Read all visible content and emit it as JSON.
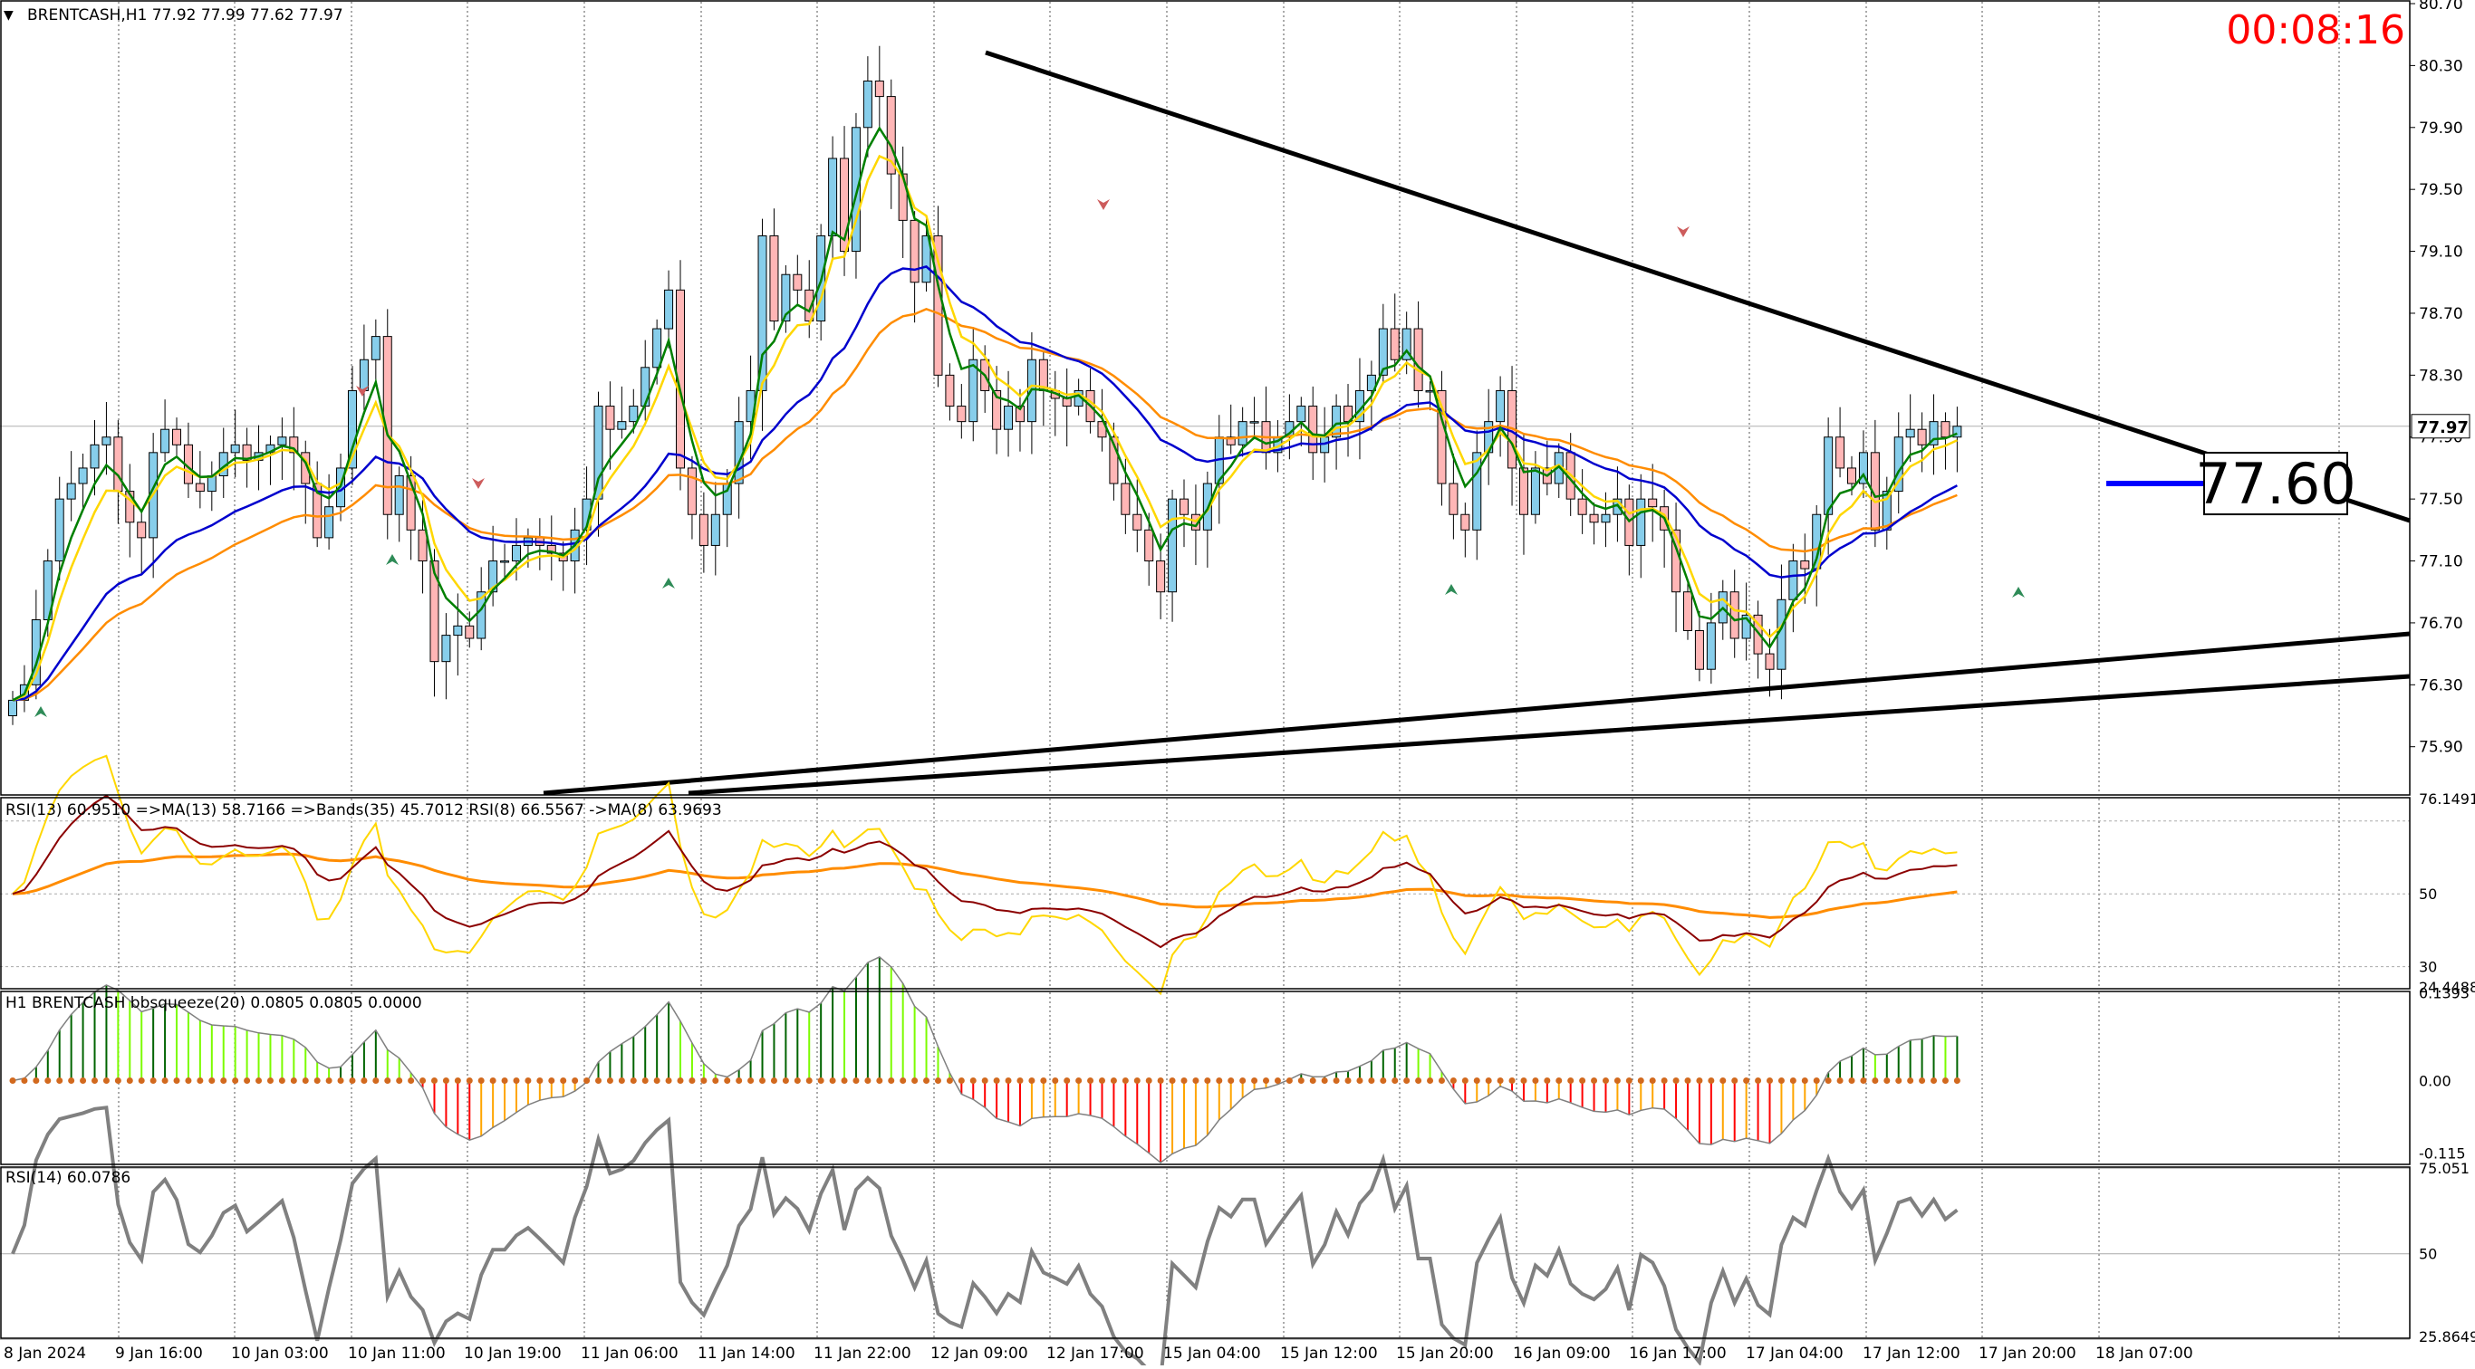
{
  "header": {
    "symbol_line": "BRENTCASH,H1  77.92 77.99 77.62 77.97",
    "timer": "00:08:16",
    "menu_arrow": "triangle-down-icon"
  },
  "colors": {
    "bull_candle": "#87ceeb",
    "bear_candle": "#ffb6b6",
    "ma_fast": "#008000",
    "ma_mid": "#ffd700",
    "ma_slow": "#0000cd",
    "ma_long": "#ff8c00",
    "rsi_fast": "#ffd700",
    "rsi_slow": "#8b0000",
    "rsi_bands": "#ff8c00",
    "squeeze_up_strong": "#006400",
    "squeeze_up_weak": "#7cfc00",
    "squeeze_down_strong": "#ff0000",
    "squeeze_down_weak": "#ffa500",
    "squeeze_dot": "#d2691e",
    "rsi14": "#808080",
    "timer": "#ff0000",
    "trendline": "#000000"
  },
  "chart_data": [
    {
      "type": "candlestick",
      "title": "BRENTCASH,H1",
      "ohlc_header": {
        "open": 77.92,
        "high": 77.99,
        "low": 77.62,
        "close": 77.97
      },
      "ylim": [
        75.6,
        80.7
      ],
      "price_ticks": [
        "80.70",
        "80.30",
        "79.90",
        "79.50",
        "79.10",
        "78.70",
        "78.30",
        "77.90",
        "77.50",
        "77.10",
        "76.70",
        "76.30",
        "75.90"
      ],
      "current_price_label": "77.97",
      "level_label": "77.60",
      "x_labels": [
        "8 Jan 2024",
        "9 Jan 16:00",
        "10 Jan 03:00",
        "10 Jan 11:00",
        "10 Jan 19:00",
        "11 Jan 06:00",
        "11 Jan 14:00",
        "11 Jan 22:00",
        "12 Jan 09:00",
        "12 Jan 17:00",
        "15 Jan 04:00",
        "15 Jan 12:00",
        "15 Jan 20:00",
        "16 Jan 09:00",
        "16 Jan 17:00",
        "17 Jan 04:00",
        "17 Jan 12:00",
        "17 Jan 20:00",
        "18 Jan 07:00"
      ],
      "close": [
        76.2,
        76.3,
        76.72,
        77.1,
        77.5,
        77.6,
        77.7,
        77.85,
        77.9,
        77.55,
        77.35,
        77.25,
        77.8,
        77.95,
        77.85,
        77.6,
        77.55,
        77.65,
        77.8,
        77.85,
        77.75,
        77.8,
        77.85,
        77.9,
        77.8,
        77.6,
        77.25,
        77.45,
        77.7,
        78.2,
        78.4,
        78.55,
        77.4,
        77.65,
        77.3,
        77.1,
        76.45,
        76.62,
        76.68,
        76.6,
        76.9,
        77.1,
        77.1,
        77.2,
        77.25,
        77.2,
        77.15,
        77.1,
        77.3,
        77.5,
        78.1,
        77.95,
        78.0,
        78.1,
        78.35,
        78.6,
        78.85,
        77.7,
        77.4,
        77.2,
        77.4,
        77.6,
        78.0,
        78.2,
        79.2,
        78.65,
        78.95,
        78.85,
        78.65,
        79.2,
        79.7,
        79.1,
        79.9,
        80.2,
        80.1,
        79.6,
        79.3,
        78.9,
        79.2,
        78.3,
        78.1,
        78.0,
        78.4,
        78.2,
        77.95,
        78.1,
        78.0,
        78.4,
        78.2,
        78.15,
        78.1,
        78.2,
        78.0,
        77.9,
        77.6,
        77.4,
        77.3,
        77.1,
        76.9,
        77.5,
        77.4,
        77.3,
        77.6,
        77.9,
        77.85,
        78.0,
        78.0,
        77.8,
        77.9,
        78.0,
        78.1,
        77.8,
        77.9,
        78.1,
        78.0,
        78.2,
        78.3,
        78.6,
        78.4,
        78.6,
        78.2,
        78.2,
        77.6,
        77.4,
        77.3,
        77.8,
        78.0,
        78.2,
        77.7,
        77.4,
        77.7,
        77.6,
        77.8,
        77.5,
        77.4,
        77.35,
        77.4,
        77.5,
        77.2,
        77.5,
        77.45,
        77.3,
        76.9,
        76.65,
        76.4,
        76.7,
        76.9,
        76.6,
        76.75,
        76.5,
        76.4,
        76.85,
        77.1,
        77.05,
        77.4,
        77.9,
        77.7,
        77.6,
        77.8,
        77.3,
        77.55,
        77.9,
        77.95,
        77.85,
        78.0,
        77.9,
        77.97
      ],
      "indicators": [
        "MA green",
        "MA yellow",
        "MA blue",
        "MA orange",
        "trendlines",
        "arrows"
      ]
    },
    {
      "type": "line",
      "title": "RSI(13) 60.9510  =>MA(13) 58.7166  =>Bands(35) 45.7012  RSI(8) 66.5567  ->MA(8) 63.9693",
      "ylim": [
        24.4488,
        76.1491
      ],
      "ticks": [
        "76.1491",
        "50",
        "30",
        "24.4488"
      ],
      "levels": [
        70,
        50,
        30
      ]
    },
    {
      "type": "bar",
      "title": "H1 BRENTCASH bbsqueeze(20) 0.0805 0.0805 0.0000",
      "ylim": [
        -0.13,
        0.14
      ],
      "ticks": [
        "0.1393",
        "0.00",
        "-0.115"
      ]
    },
    {
      "type": "line",
      "title": "RSI(14) 60.0786",
      "ylim": [
        25.8649,
        75.051
      ],
      "ticks": [
        "75.051",
        "50",
        "25.8649"
      ],
      "levels": [
        75,
        50,
        25
      ]
    }
  ]
}
